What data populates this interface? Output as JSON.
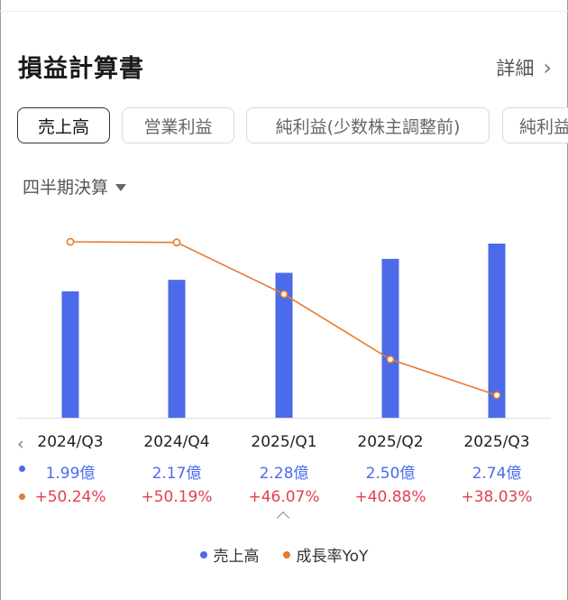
{
  "header": {
    "title": "損益計算書",
    "detail_label": "詳細",
    "detail_chevron": "chevron-right-icon"
  },
  "tabs": [
    {
      "label": "売上高",
      "active": true
    },
    {
      "label": "営業利益",
      "active": false
    },
    {
      "label": "純利益(少数株主調整前)",
      "active": false
    },
    {
      "label": "純利益",
      "active": false
    }
  ],
  "period": {
    "label": "四半期決算",
    "icon": "caret-down-icon"
  },
  "colors": {
    "bar": "#4b6bea",
    "line": "#e77a2d",
    "positive": "#e0424c"
  },
  "chart_data": {
    "type": "bar",
    "categories": [
      "2024/Q3",
      "2024/Q4",
      "2025/Q1",
      "2025/Q2",
      "2025/Q3"
    ],
    "series": [
      {
        "name": "売上高",
        "type": "bar",
        "values": [
          1.99,
          2.17,
          2.28,
          2.5,
          2.74
        ],
        "labels": [
          "1.99億",
          "2.17億",
          "2.28億",
          "2.50億",
          "2.74億"
        ]
      },
      {
        "name": "成長率YoY",
        "type": "line",
        "values": [
          50.24,
          50.19,
          46.07,
          40.88,
          38.03
        ],
        "labels": [
          "+50.24%",
          "+50.19%",
          "+46.07%",
          "+40.88%",
          "+38.03%"
        ]
      }
    ],
    "legend": [
      "売上高",
      "成長率YoY"
    ],
    "legend_position": "bottom",
    "grid": false
  }
}
